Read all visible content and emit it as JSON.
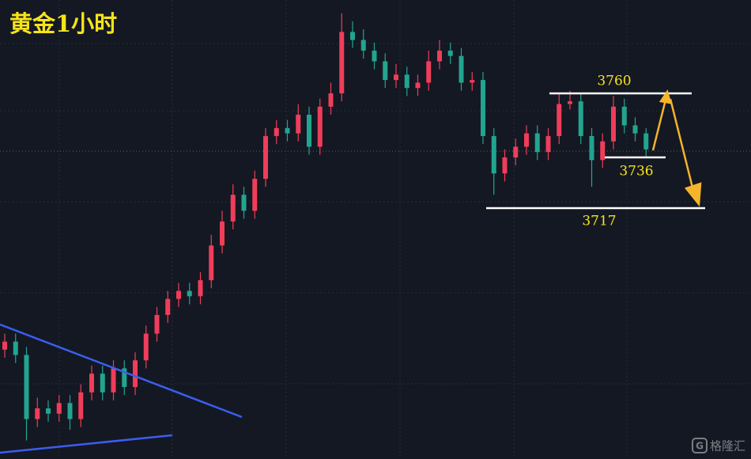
{
  "chart_data": {
    "type": "candlestick",
    "title": "黄金1小时",
    "watermark": "格隆汇",
    "open": [
      3664,
      3667,
      3662,
      3638,
      3642,
      3640,
      3644,
      3638,
      3648,
      3655,
      3648,
      3657,
      3650,
      3660,
      3670,
      3677,
      3683,
      3686,
      3684,
      3690,
      3703,
      3712,
      3722,
      3716,
      3728,
      3744,
      3747,
      3745,
      3752,
      3740,
      3755,
      3760,
      3783,
      3780,
      3776,
      3772,
      3765,
      3767,
      3762,
      3764,
      3772,
      3776,
      3774,
      3764,
      3765,
      3744,
      3730,
      3736,
      3740,
      3745,
      3738,
      3744,
      3756,
      3757,
      3744,
      3735,
      3742,
      3755,
      3748,
      3745
    ],
    "high": [
      3670,
      3670,
      3665,
      3646,
      3645,
      3647,
      3647,
      3651,
      3658,
      3658,
      3660,
      3660,
      3663,
      3673,
      3680,
      3686,
      3689,
      3689,
      3693,
      3707,
      3716,
      3726,
      3725,
      3731,
      3747,
      3750,
      3750,
      3756,
      3755,
      3758,
      3764,
      3790,
      3787,
      3784,
      3779,
      3775,
      3771,
      3770,
      3767,
      3776,
      3780,
      3779,
      3777,
      3768,
      3768,
      3747,
      3739,
      3743,
      3748,
      3748,
      3747,
      3760,
      3761,
      3760,
      3747,
      3745,
      3759,
      3758,
      3751,
      3747
    ],
    "low": [
      3661,
      3659,
      3630,
      3635,
      3637,
      3637,
      3634,
      3635,
      3645,
      3645,
      3645,
      3647,
      3647,
      3657,
      3667,
      3674,
      3680,
      3681,
      3681,
      3687,
      3700,
      3709,
      3713,
      3713,
      3725,
      3741,
      3742,
      3742,
      3737,
      3737,
      3752,
      3757,
      3777,
      3773,
      3769,
      3762,
      3762,
      3759,
      3759,
      3761,
      3769,
      3771,
      3761,
      3761,
      3741,
      3722,
      3727,
      3733,
      3737,
      3735,
      3735,
      3741,
      3754,
      3741,
      3725,
      3732,
      3739,
      3745,
      3742,
      3736
    ],
    "close": [
      3667,
      3662,
      3638,
      3642,
      3640,
      3644,
      3638,
      3648,
      3655,
      3648,
      3657,
      3650,
      3660,
      3670,
      3677,
      3683,
      3686,
      3684,
      3690,
      3703,
      3712,
      3722,
      3716,
      3728,
      3744,
      3747,
      3745,
      3752,
      3740,
      3755,
      3760,
      3783,
      3780,
      3776,
      3772,
      3765,
      3767,
      3762,
      3764,
      3772,
      3776,
      3774,
      3764,
      3765,
      3744,
      3730,
      3736,
      3740,
      3745,
      3738,
      3744,
      3756,
      3757,
      3744,
      3735,
      3742,
      3755,
      3748,
      3745,
      3739
    ],
    "levels": [
      3760,
      3736,
      3717
    ],
    "ylim": [
      3626,
      3792
    ],
    "up_color": "#ef3d5a",
    "down_color": "#22a58f",
    "level_color": "#ffffff",
    "title_color": "#f7e31a"
  }
}
